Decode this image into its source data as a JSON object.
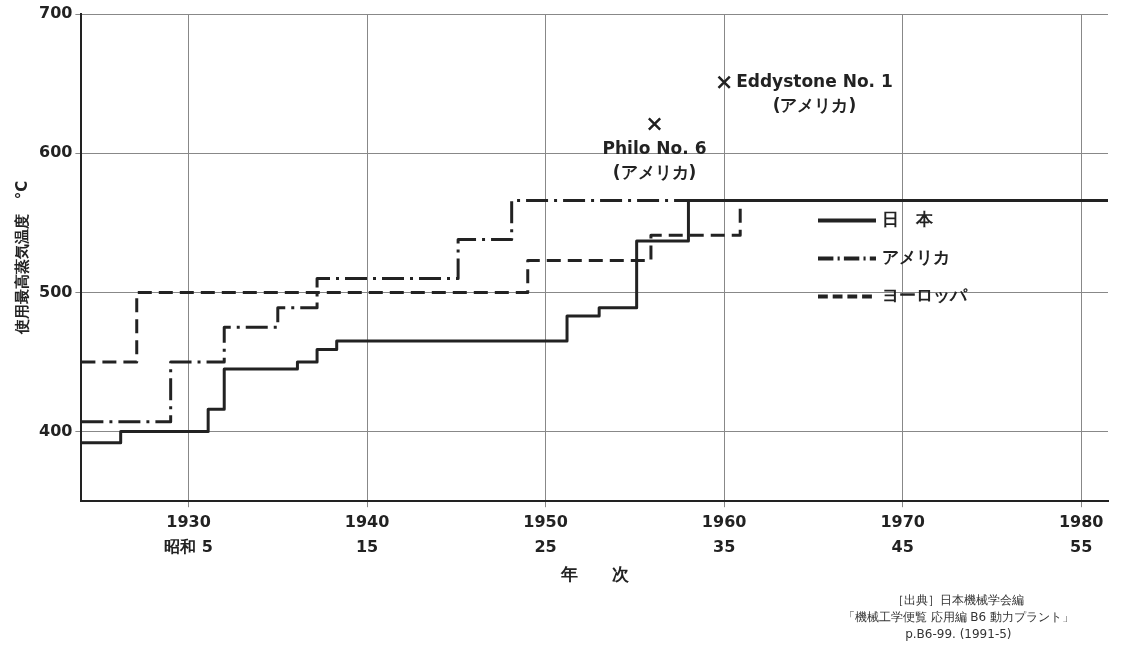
{
  "chart_data": {
    "type": "step",
    "xlabel": "年　　次",
    "ylabel": "使用最高蒸気温度　°C",
    "xlim": [
      1924,
      1981.5
    ],
    "xticks": [
      1930,
      1940,
      1950,
      1960,
      1970,
      1980
    ],
    "x2lim": [
      -1,
      56.5
    ],
    "x2ticks": [
      {
        "value": 5,
        "label": "昭和 5"
      },
      15,
      25,
      35,
      45,
      55
    ],
    "ylim": [
      350,
      700
    ],
    "yticks": [
      400,
      500,
      600,
      700
    ],
    "grid": true,
    "legend": "right",
    "series": [
      {
        "name": "日　本",
        "color": "#222222",
        "line_style": "solid",
        "x": [
          1924,
          1926.2,
          1931.1,
          1932,
          1936.1,
          1937.2,
          1938.3,
          1951.2,
          1953,
          1955.1,
          1958,
          1981.5
        ],
        "values": [
          392,
          400,
          416,
          445,
          450,
          459,
          465,
          483,
          489,
          537,
          566,
          566
        ]
      },
      {
        "name": "アメリカ",
        "color": "#222222",
        "line_style": "dashdot",
        "x": [
          1924,
          1929,
          1932,
          1935,
          1937.2,
          1945.1,
          1948.1,
          1981.5
        ],
        "values": [
          407,
          450,
          475,
          489,
          510,
          538,
          566,
          566
        ]
      },
      {
        "name": "ヨーロッパ",
        "color": "#222222",
        "line_style": "dashed",
        "x": [
          1924,
          1927.1,
          1949,
          1955.9,
          1960.9
        ],
        "values": [
          450,
          500,
          523,
          541,
          566
        ]
      },
      {
        "type": "scatter",
        "color": "#222222",
        "marker": "cross",
        "x": [
          1956.1,
          1960
        ],
        "values": [
          621,
          651
        ]
      }
    ],
    "annotations": [
      {
        "text": "Philo No. 6\n(アメリカ)",
        "x": 1956.1,
        "y": 621
      },
      {
        "text": "Eddystone No. 1\n(アメリカ)",
        "x": 1960,
        "y": 651
      },
      "［出典］日本機械学会編",
      "「機械工学便覧 応用編 B6 動力プラント」",
      "p.B6-99. (1991-5)"
    ]
  }
}
